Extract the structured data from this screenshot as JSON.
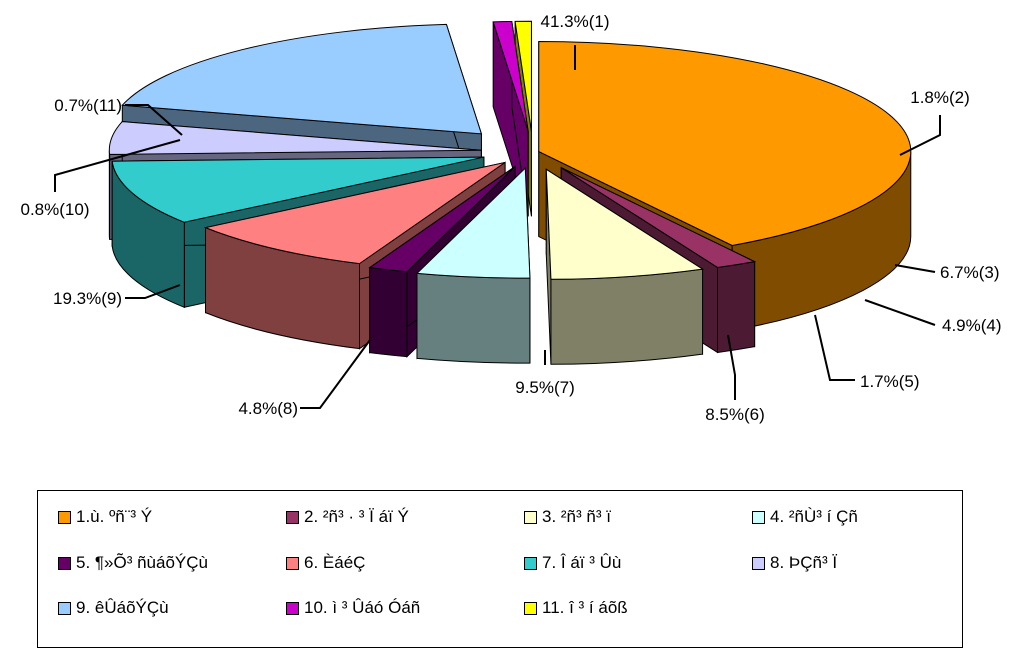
{
  "chart_data": {
    "type": "pie",
    "title": "",
    "slices": [
      {
        "label": "1.ù. ºñ¨³ Ý",
        "value": 41.3,
        "label_text": "41.3%(1)",
        "color": "#FF9900"
      },
      {
        "label": "2. ²ñ³ · ³ Ï áï Ý",
        "value": 1.8,
        "label_text": "1.8%(2)",
        "color": "#993366"
      },
      {
        "label": "3. ²ñ³ ñ³ ï",
        "value": 6.7,
        "label_text": "6.7%(3)",
        "color": "#FFFFCC"
      },
      {
        "label": "4. ²ñÙ³ í Çñ",
        "value": 4.9,
        "label_text": "4.9%(4)",
        "color": "#CCFFFF"
      },
      {
        "label": "5. ¶»Õ³ ñùáõÝÇù",
        "value": 1.7,
        "label_text": "1.7%(5)",
        "color": "#660066"
      },
      {
        "label": "6. ÈáéÇ",
        "value": 8.5,
        "label_text": "8.5%(6)",
        "color": "#FF8080"
      },
      {
        "label": "7. Î áï ³ Ûù",
        "value": 9.5,
        "label_text": "9.5%(7)",
        "color": "#33CCCC"
      },
      {
        "label": "8. ÞÇñ³ Ï",
        "value": 4.8,
        "label_text": "4.8%(8)",
        "color": "#CCCCFF"
      },
      {
        "label": "9. êÛáõÝÇù",
        "value": 19.3,
        "label_text": "19.3%(9)",
        "color": "#99CCFF"
      },
      {
        "label": "10. ì ³ Ûáó Óáñ",
        "value": 0.8,
        "label_text": "0.8%(10)",
        "color": "#CC00CC"
      },
      {
        "label": "11. î ³ í áõß",
        "value": 0.7,
        "label_text": "0.7%(11)",
        "color": "#FFFF00"
      }
    ],
    "legend_position": "bottom",
    "exploded": true,
    "three_d": true
  }
}
